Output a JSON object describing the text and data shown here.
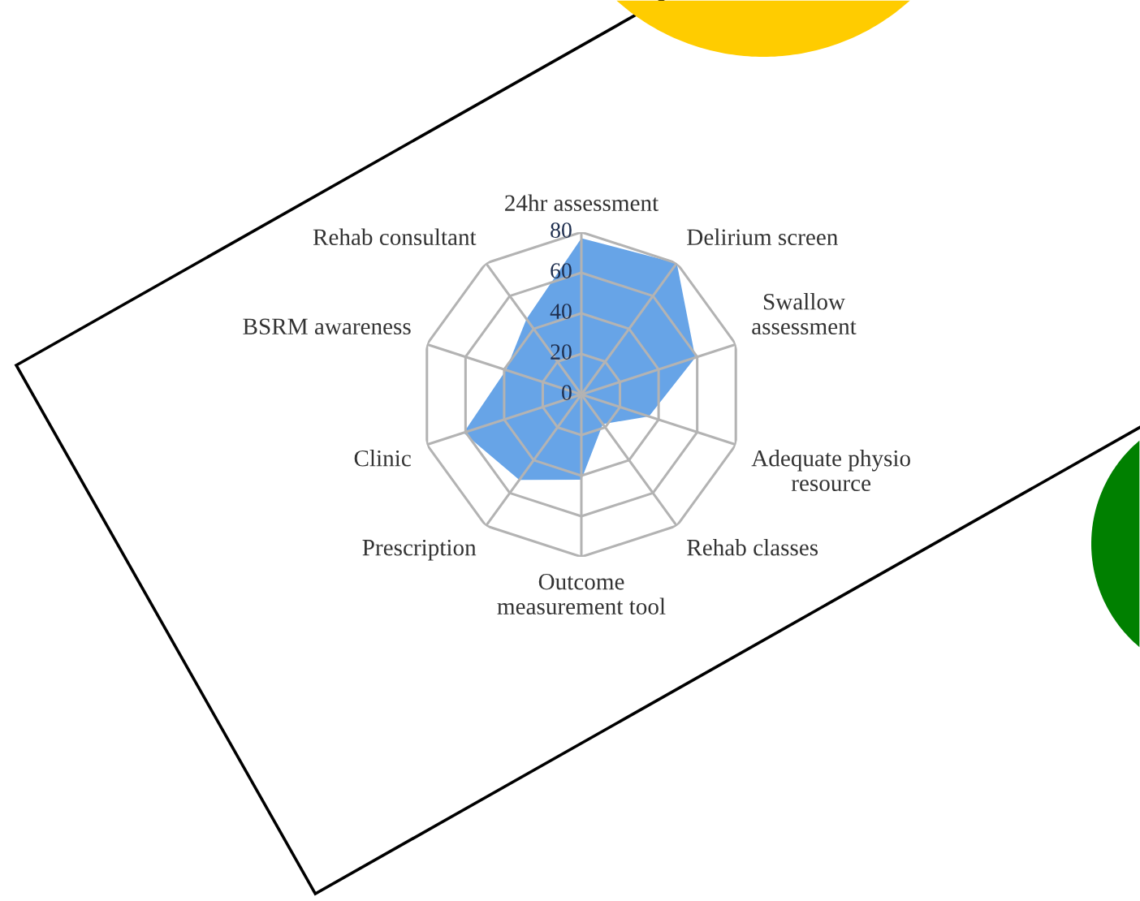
{
  "chart_data": {
    "type": "radar",
    "categories": [
      "24hr assessment",
      "Delirium screen",
      "Swallow\nassessment",
      "Adequate physio\nresource",
      "Rehab classes",
      "Outcome\nmeasurement tool",
      "Prescription",
      "Clinic",
      "BSRM awareness",
      "Rehab consultant"
    ],
    "series": [
      {
        "color": "#5f9fe6",
        "values": [
          77,
          80,
          59,
          35,
          18,
          42,
          52,
          61,
          39,
          46
        ]
      }
    ],
    "ylim": [
      0,
      80
    ],
    "yticks": [
      0,
      20,
      40,
      60,
      80
    ],
    "grid": true
  }
}
